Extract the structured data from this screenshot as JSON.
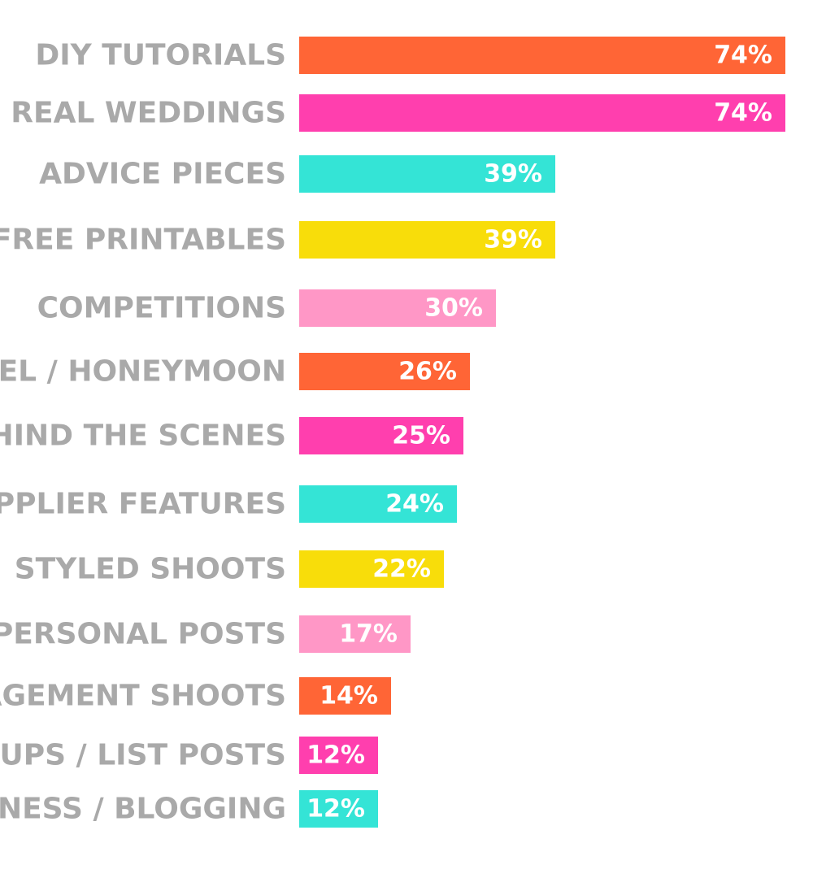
{
  "chart_data": {
    "type": "bar",
    "orientation": "horizontal",
    "categories": [
      "DIY TUTORIALS",
      "REAL WEDDINGS",
      "ADVICE PIECES",
      "FREE PRINTABLES",
      "COMPETITIONS",
      "TRAVEL / HONEYMOON",
      "BEHIND THE SCENES",
      "SUPPLIER FEATURES",
      "STYLED SHOOTS",
      "PERSONAL POSTS",
      "ENGAGEMENT SHOOTS",
      "ROUND UPS / LIST POSTS",
      "BUSINESS / BLOGGING"
    ],
    "values": [
      74,
      74,
      39,
      39,
      30,
      26,
      25,
      24,
      22,
      17,
      14,
      12,
      12
    ],
    "labels": [
      "74%",
      "74%",
      "39%",
      "39%",
      "30%",
      "26%",
      "25%",
      "24%",
      "22%",
      "17%",
      "14%",
      "12%",
      "12%"
    ],
    "colors": [
      "#ff6536",
      "#ff3fae",
      "#34e4d6",
      "#f8dd0a",
      "#ff97c6",
      "#ff6536",
      "#ff3fae",
      "#34e4d6",
      "#f8dd0a",
      "#ff97c6",
      "#ff6536",
      "#ff3fae",
      "#34e4d6"
    ],
    "label_color": "#a9a9a9",
    "data_label_color": "#ffffff",
    "title": "",
    "xlabel": "",
    "ylabel": "",
    "xlim": [
      0,
      74
    ],
    "grid": false,
    "legend": "none"
  }
}
